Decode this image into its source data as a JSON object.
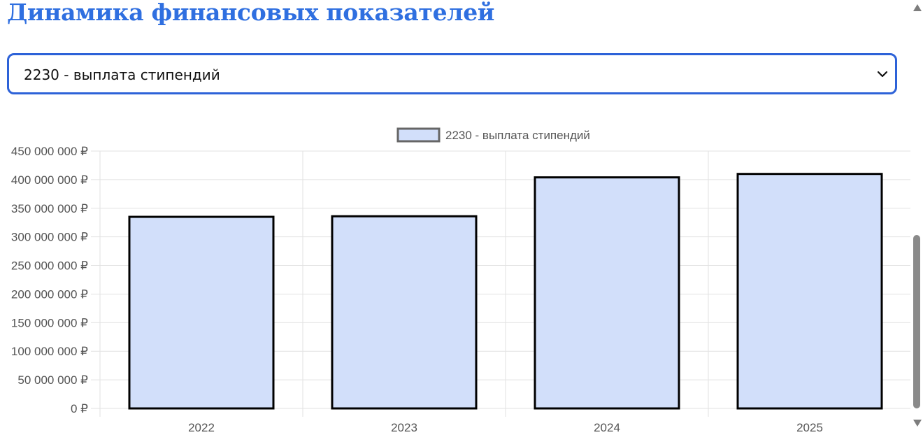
{
  "page": {
    "title": "Динамика финансовых показателей"
  },
  "selector": {
    "selected": "2230 - выплата стипендий"
  },
  "colors": {
    "title": "#2f6fe0",
    "select_border": "#2d62d8",
    "bar_fill": "#d2dffa",
    "bar_stroke": "#000000",
    "grid": "#e2e2e2",
    "tick_text": "#555555"
  },
  "chart_data": {
    "type": "bar",
    "categories": [
      "2022",
      "2023",
      "2024",
      "2025"
    ],
    "series": [
      {
        "name": "2230 - выплата стипендий",
        "values": [
          335000000,
          336000000,
          404000000,
          410000000
        ]
      }
    ],
    "ylim": [
      0,
      450000000
    ],
    "y_ticks": [
      "0 ₽",
      "50 000 000 ₽",
      "100 000 000 ₽",
      "150 000 000 ₽",
      "200 000 000 ₽",
      "250 000 000 ₽",
      "300 000 000 ₽",
      "350 000 000 ₽",
      "400 000 000 ₽",
      "450 000 000 ₽"
    ],
    "legend_position": "top",
    "grid": true
  }
}
